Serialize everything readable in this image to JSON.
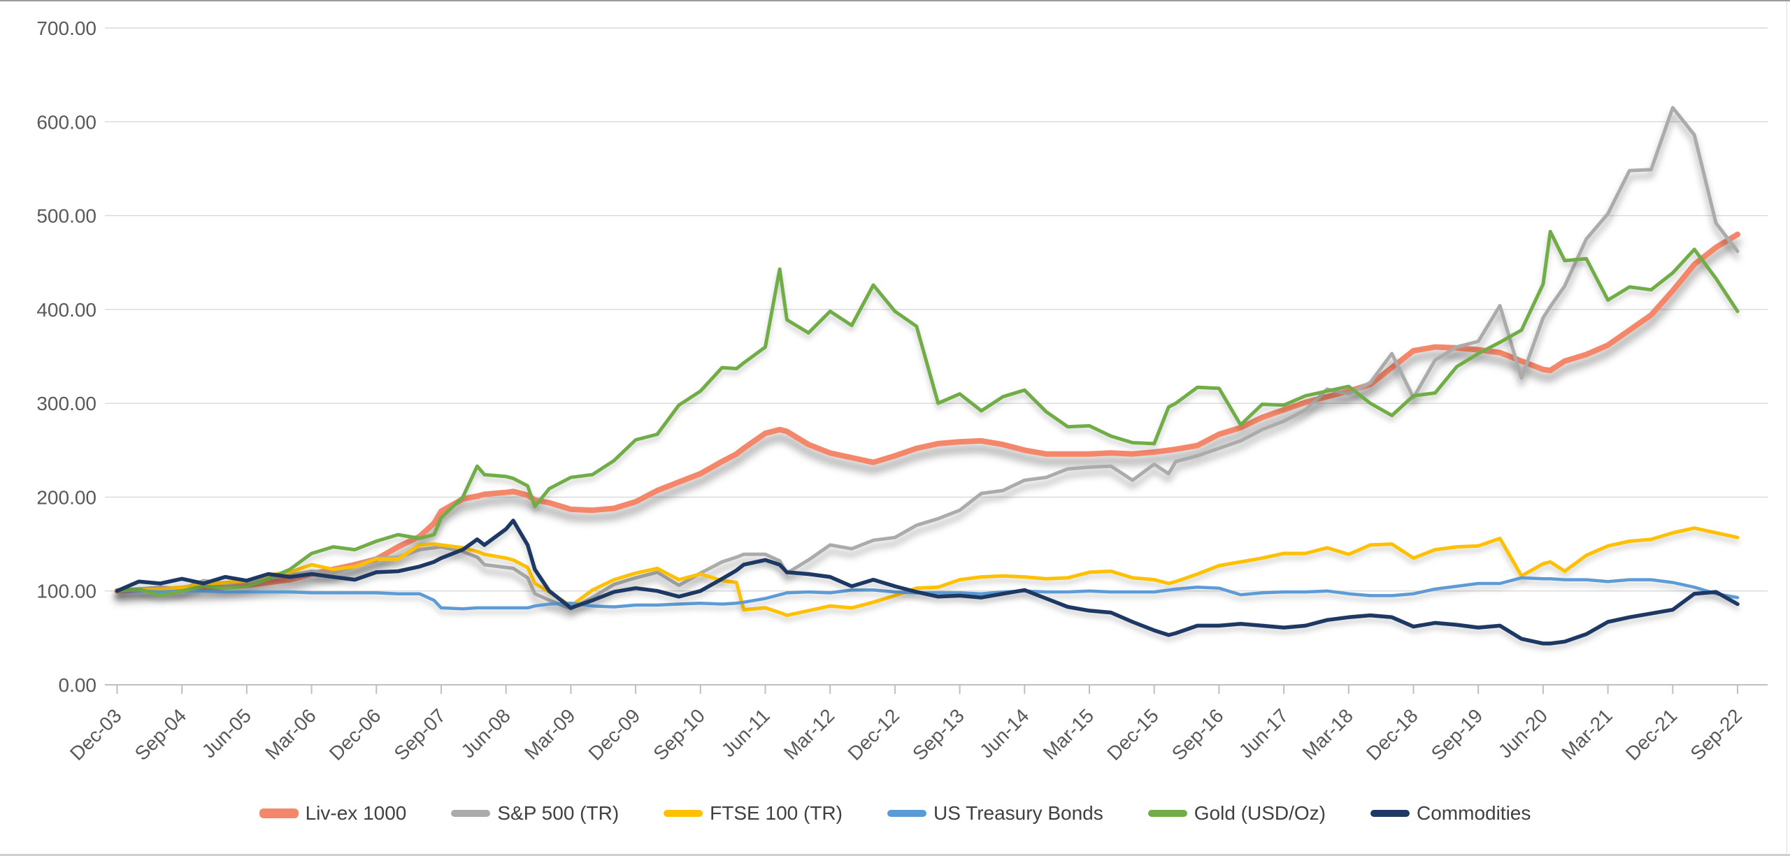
{
  "chart_data": {
    "type": "line",
    "title": "",
    "xlabel": "",
    "ylabel": "",
    "grid": "horizontal",
    "legend_position": "bottom",
    "ylim": [
      0,
      700
    ],
    "y_tick_labels": [
      "0.00",
      "100.00",
      "200.00",
      "300.00",
      "400.00",
      "500.00",
      "600.00",
      "700.00"
    ],
    "y_tick_values": [
      0,
      100,
      200,
      300,
      400,
      500,
      600,
      700
    ],
    "x_tick_months": [
      0,
      9,
      18,
      27,
      36,
      45,
      54,
      63,
      72,
      81,
      90,
      99,
      108,
      117,
      126,
      135,
      144,
      153,
      162,
      171,
      180,
      189,
      198,
      207,
      216,
      225
    ],
    "x_tick_labels": [
      "Dec-03",
      "Sep-04",
      "Jun-05",
      "Mar-06",
      "Dec-06",
      "Sep-07",
      "Jun-08",
      "Mar-09",
      "Dec-09",
      "Sep-10",
      "Jun-11",
      "Mar-12",
      "Dec-12",
      "Sep-13",
      "Jun-14",
      "Mar-15",
      "Dec-15",
      "Sep-16",
      "Jun-17",
      "Mar-18",
      "Dec-18",
      "Sep-19",
      "Jun-20",
      "Mar-21",
      "Dec-21",
      "Sep-22"
    ],
    "x_months": [
      0,
      3,
      6,
      9,
      12,
      15,
      18,
      21,
      24,
      27,
      30,
      33,
      36,
      39,
      42,
      44,
      45,
      48,
      50,
      51,
      54,
      55,
      57,
      58,
      60,
      63,
      66,
      69,
      72,
      75,
      78,
      81,
      84,
      86,
      87,
      90,
      92,
      93,
      96,
      99,
      102,
      105,
      108,
      111,
      114,
      117,
      120,
      123,
      126,
      129,
      132,
      135,
      138,
      141,
      144,
      146,
      147,
      150,
      153,
      156,
      159,
      162,
      165,
      168,
      171,
      174,
      177,
      180,
      183,
      186,
      189,
      192,
      195,
      198,
      199,
      201,
      204,
      207,
      210,
      213,
      216,
      219,
      222,
      225
    ],
    "series": [
      {
        "name": "Liv-ex 1000",
        "color": "#F4876B",
        "line_width": 8,
        "shadow": "strong",
        "values": [
          100,
          101,
          102,
          102,
          103,
          104,
          106,
          109,
          112,
          118,
          123,
          128,
          134,
          147,
          158,
          172,
          185,
          198,
          201,
          203,
          205,
          206,
          202,
          197,
          194,
          187,
          186,
          188,
          195,
          207,
          216,
          225,
          238,
          246,
          252,
          268,
          272,
          270,
          256,
          247,
          242,
          237,
          244,
          252,
          257,
          259,
          260,
          256,
          250,
          246,
          246,
          246,
          247,
          246,
          248,
          250,
          251,
          255,
          267,
          274,
          285,
          293,
          301,
          307,
          313,
          320,
          338,
          356,
          360,
          359,
          357,
          354,
          345,
          336,
          335,
          345,
          352,
          362,
          378,
          394,
          420,
          448,
          466,
          480
        ]
      },
      {
        "name": "S&P 500 (TR)",
        "color": "#ABABAB",
        "line_width": 5,
        "shadow": "medium",
        "values": [
          100,
          102,
          104,
          102,
          111,
          108,
          110,
          114,
          117,
          121,
          119,
          126,
          135,
          136,
          144,
          146,
          147,
          142,
          136,
          128,
          125,
          124,
          114,
          97,
          90,
          81,
          93,
          107,
          114,
          120,
          106,
          119,
          131,
          136,
          139,
          139,
          132,
          119,
          133,
          149,
          145,
          154,
          157,
          170,
          177,
          186,
          204,
          207,
          218,
          221,
          230,
          232,
          233,
          218,
          235,
          225,
          238,
          244,
          252,
          260,
          272,
          281,
          293,
          315,
          310,
          322,
          353,
          306,
          346,
          360,
          366,
          404,
          327,
          391,
          403,
          425,
          475,
          502,
          548,
          549,
          615,
          586,
          492,
          462
        ]
      },
      {
        "name": "FTSE 100 (TR)",
        "color": "#FFC000",
        "line_width": 5,
        "shadow": "light",
        "values": [
          100,
          101,
          102,
          104,
          107,
          109,
          111,
          117,
          120,
          128,
          123,
          126,
          134,
          134,
          149,
          150,
          149,
          146,
          142,
          139,
          135,
          133,
          125,
          108,
          99,
          84,
          101,
          112,
          119,
          124,
          112,
          118,
          111,
          109,
          80,
          82,
          77,
          74,
          79,
          84,
          82,
          88,
          95,
          103,
          104,
          112,
          115,
          116,
          115,
          113,
          114,
          120,
          121,
          114,
          112,
          108,
          110,
          118,
          127,
          131,
          135,
          140,
          140,
          146,
          139,
          149,
          150,
          135,
          144,
          147,
          148,
          156,
          116,
          129,
          131,
          121,
          138,
          148,
          153,
          155,
          162,
          167,
          162,
          157
        ]
      },
      {
        "name": "US Treasury Bonds",
        "color": "#5B9BD5",
        "line_width": 4.5,
        "shadow": "light",
        "values": [
          100,
          100,
          99,
          100,
          100,
          99,
          99,
          99,
          99,
          98,
          98,
          98,
          98,
          97,
          97,
          90,
          82,
          81,
          82,
          82,
          82,
          82,
          82,
          84,
          86,
          87,
          84,
          83,
          85,
          85,
          86,
          87,
          86,
          87,
          88,
          92,
          96,
          98,
          99,
          98,
          101,
          101,
          99,
          98,
          98,
          98,
          97,
          99,
          100,
          99,
          99,
          100,
          99,
          99,
          99,
          101,
          102,
          104,
          103,
          96,
          98,
          99,
          99,
          100,
          97,
          95,
          95,
          97,
          102,
          105,
          108,
          108,
          114,
          113,
          113,
          112,
          112,
          110,
          112,
          112,
          109,
          104,
          97,
          93
        ]
      },
      {
        "name": "Gold (USD/Oz)",
        "color": "#70AD47",
        "line_width": 5,
        "shadow": "light",
        "values": [
          100,
          102,
          95,
          100,
          105,
          103,
          105,
          113,
          123,
          140,
          147,
          144,
          153,
          160,
          156,
          160,
          178,
          200,
          233,
          224,
          222,
          220,
          212,
          190,
          209,
          221,
          224,
          239,
          261,
          267,
          298,
          313,
          338,
          337,
          343,
          360,
          443,
          389,
          375,
          398,
          383,
          426,
          398,
          382,
          300,
          310,
          292,
          307,
          314,
          291,
          275,
          276,
          265,
          258,
          257,
          296,
          300,
          317,
          316,
          277,
          299,
          298,
          308,
          313,
          318,
          300,
          287,
          308,
          311,
          339,
          353,
          365,
          378,
          427,
          483,
          452,
          454,
          410,
          424,
          421,
          439,
          464,
          433,
          398
        ]
      },
      {
        "name": "Commodities",
        "color": "#1F3864",
        "line_width": 5.5,
        "shadow": "light",
        "values": [
          100,
          110,
          108,
          113,
          108,
          115,
          111,
          118,
          115,
          118,
          115,
          112,
          120,
          121,
          126,
          131,
          135,
          144,
          155,
          149,
          166,
          175,
          149,
          123,
          100,
          82,
          90,
          99,
          103,
          100,
          94,
          100,
          113,
          122,
          128,
          133,
          128,
          120,
          118,
          115,
          105,
          112,
          105,
          99,
          94,
          95,
          93,
          97,
          101,
          92,
          83,
          79,
          77,
          67,
          58,
          53,
          55,
          63,
          63,
          65,
          63,
          61,
          63,
          69,
          72,
          74,
          72,
          62,
          66,
          64,
          61,
          63,
          49,
          44,
          44,
          46,
          54,
          67,
          72,
          76,
          80,
          97,
          99,
          86
        ]
      }
    ],
    "axis_colors": {
      "grid": "#D9D9D9",
      "axis_line": "#BFBFBF",
      "tick_text": "#595959"
    }
  }
}
